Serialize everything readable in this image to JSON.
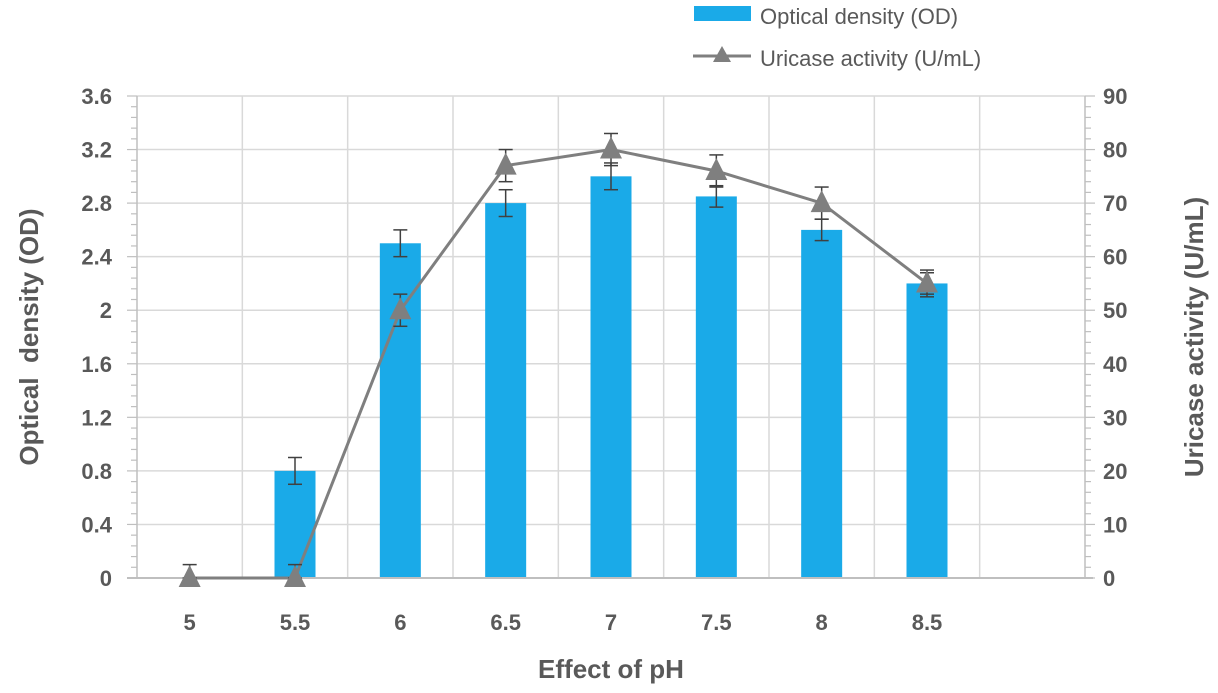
{
  "chart_data": {
    "type": "bar",
    "title": "",
    "xlabel": "Effect of pH",
    "ylabel": "Optical  density (OD)",
    "y2label": "Uricase activity (U/mL)",
    "categories": [
      "5",
      "5.5",
      "6",
      "6.5",
      "7",
      "7.5",
      "8",
      "8.5"
    ],
    "x_slots": 9,
    "ylim": [
      0,
      3.6
    ],
    "yticks": [
      "0",
      "0.4",
      "0.8",
      "1.2",
      "1.6",
      "2",
      "2.4",
      "2.8",
      "3.2",
      "3.6"
    ],
    "y2lim": [
      0,
      90
    ],
    "y2ticks": [
      "0",
      "10",
      "20",
      "30",
      "40",
      "50",
      "60",
      "70",
      "80",
      "90"
    ],
    "grid": true,
    "legend_position": "top-right",
    "series": [
      {
        "name": "Optical density (OD)",
        "type": "bar",
        "axis": "left",
        "color": "#1AAAE8",
        "values": [
          0,
          0.8,
          2.5,
          2.8,
          3.0,
          2.85,
          2.6,
          2.2
        ],
        "errors": [
          0,
          0.1,
          0.1,
          0.1,
          0.1,
          0.08,
          0.08,
          0.1
        ]
      },
      {
        "name": "Uricase activity (U/mL)",
        "type": "line",
        "axis": "right",
        "marker": "triangle",
        "color": "#7F7F7F",
        "values": [
          0,
          0,
          50,
          77,
          80,
          76,
          70,
          55
        ],
        "errors": [
          2.5,
          2.5,
          3,
          3,
          3,
          3,
          3,
          2
        ]
      }
    ]
  }
}
